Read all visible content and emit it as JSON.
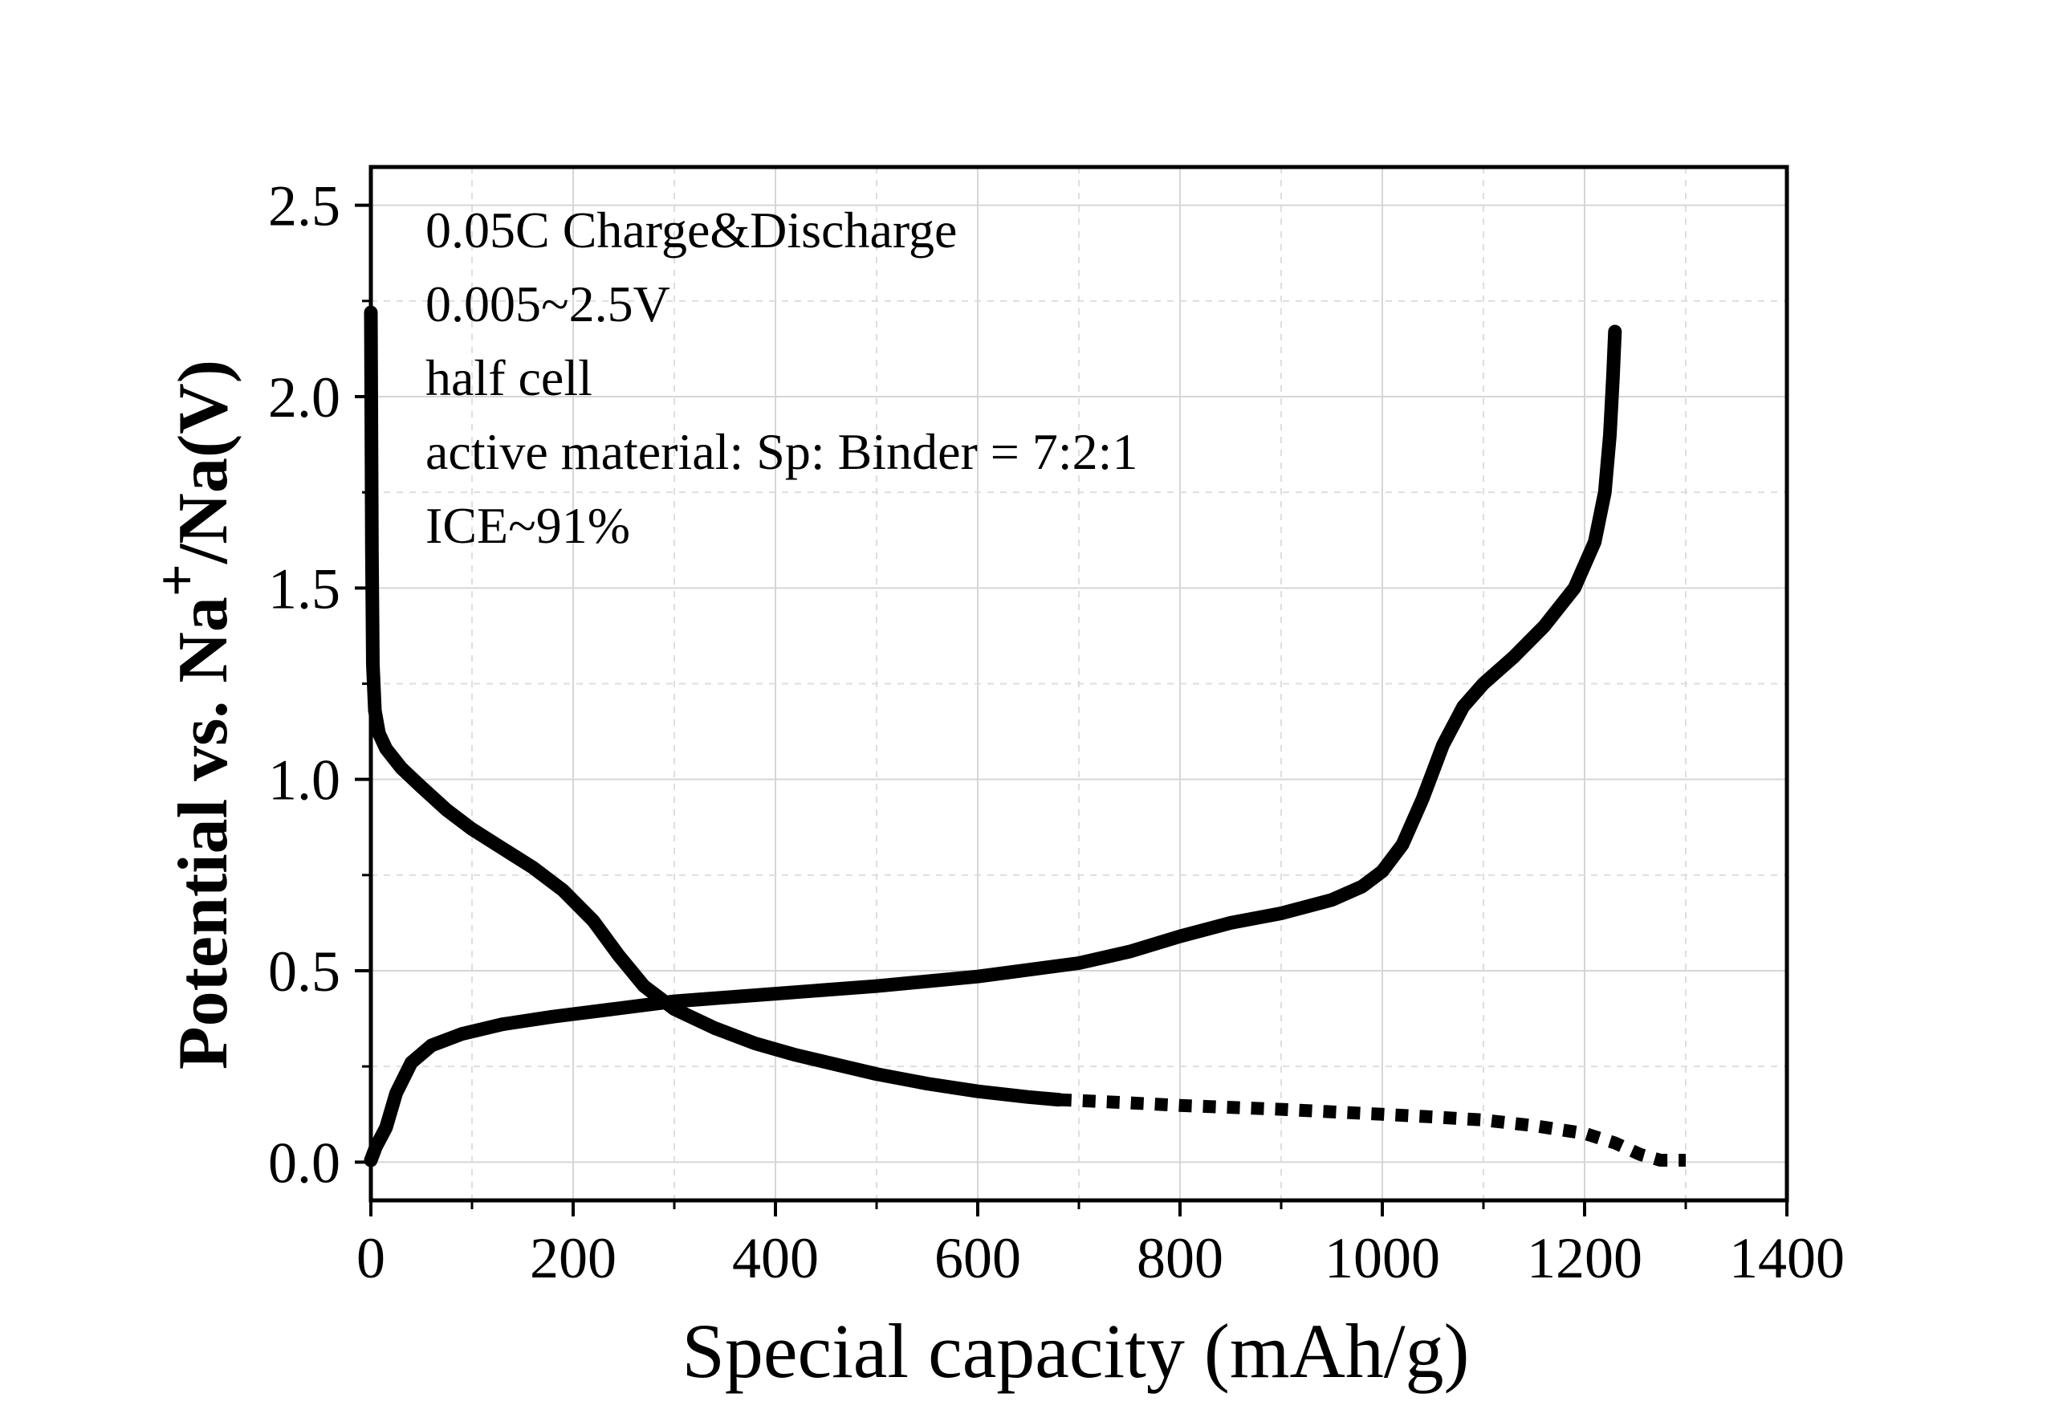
{
  "chart_data": {
    "type": "line",
    "title": "",
    "xlabel": "Special capacity (mAh/g)",
    "ylabel": {
      "prefix": "Potential vs. Na",
      "superscript": "+",
      "suffix": "/Na(V)"
    },
    "xlim": [
      0,
      1400
    ],
    "ylim": [
      -0.1,
      2.6
    ],
    "xticks": [
      0,
      200,
      400,
      600,
      800,
      1000,
      1200,
      1400
    ],
    "yticks": [
      0.0,
      0.5,
      1.0,
      1.5,
      2.0,
      2.5
    ],
    "xtick_labels": [
      "0",
      "200",
      "400",
      "600",
      "800",
      "1000",
      "1200",
      "1400"
    ],
    "ytick_labels": [
      "0.0",
      "0.5",
      "1.0",
      "1.5",
      "2.0",
      "2.5"
    ],
    "grid": true,
    "line_color": "#000000",
    "annotations": [
      "0.05C Charge&Discharge",
      "0.005~2.5V",
      "half cell",
      "active material: Sp: Binder = 7:2:1",
      "ICE~91%"
    ],
    "series": [
      {
        "points": [
          [
            0,
            2.22
          ],
          [
            1,
            1.6
          ],
          [
            2,
            1.3
          ],
          [
            4,
            1.18
          ],
          [
            8,
            1.12
          ],
          [
            15,
            1.08
          ],
          [
            30,
            1.03
          ],
          [
            50,
            0.98
          ],
          [
            75,
            0.92
          ],
          [
            100,
            0.87
          ],
          [
            130,
            0.82
          ],
          [
            160,
            0.77
          ],
          [
            190,
            0.71
          ],
          [
            220,
            0.63
          ],
          [
            245,
            0.54
          ],
          [
            270,
            0.46
          ],
          [
            300,
            0.4
          ],
          [
            340,
            0.35
          ],
          [
            380,
            0.31
          ],
          [
            420,
            0.28
          ],
          [
            460,
            0.255
          ],
          [
            500,
            0.23
          ],
          [
            550,
            0.205
          ],
          [
            600,
            0.185
          ],
          [
            650,
            0.17
          ],
          [
            680,
            0.163
          ]
        ]
      },
      {
        "style": "dashed",
        "points": [
          [
            680,
            0.163
          ],
          [
            750,
            0.155
          ],
          [
            800,
            0.148
          ],
          [
            900,
            0.138
          ],
          [
            1000,
            0.125
          ],
          [
            1050,
            0.118
          ],
          [
            1100,
            0.11
          ],
          [
            1150,
            0.095
          ],
          [
            1200,
            0.075
          ],
          [
            1230,
            0.05
          ],
          [
            1255,
            0.02
          ],
          [
            1275,
            0.005
          ],
          [
            1300,
            0.005
          ]
        ]
      },
      {
        "points": [
          [
            0,
            0.005
          ],
          [
            5,
            0.04
          ],
          [
            15,
            0.09
          ],
          [
            25,
            0.18
          ],
          [
            40,
            0.26
          ],
          [
            60,
            0.305
          ],
          [
            90,
            0.335
          ],
          [
            130,
            0.36
          ],
          [
            180,
            0.38
          ],
          [
            240,
            0.4
          ],
          [
            300,
            0.42
          ],
          [
            400,
            0.44
          ],
          [
            500,
            0.46
          ],
          [
            600,
            0.485
          ],
          [
            700,
            0.52
          ],
          [
            750,
            0.55
          ],
          [
            800,
            0.59
          ],
          [
            850,
            0.625
          ],
          [
            900,
            0.65
          ],
          [
            950,
            0.685
          ],
          [
            980,
            0.72
          ],
          [
            1000,
            0.76
          ],
          [
            1020,
            0.83
          ],
          [
            1040,
            0.95
          ],
          [
            1060,
            1.09
          ],
          [
            1080,
            1.19
          ],
          [
            1100,
            1.25
          ],
          [
            1130,
            1.32
          ],
          [
            1160,
            1.4
          ],
          [
            1190,
            1.5
          ],
          [
            1210,
            1.62
          ],
          [
            1220,
            1.75
          ],
          [
            1225,
            1.9
          ],
          [
            1228,
            2.05
          ],
          [
            1230,
            2.17
          ]
        ]
      }
    ]
  }
}
